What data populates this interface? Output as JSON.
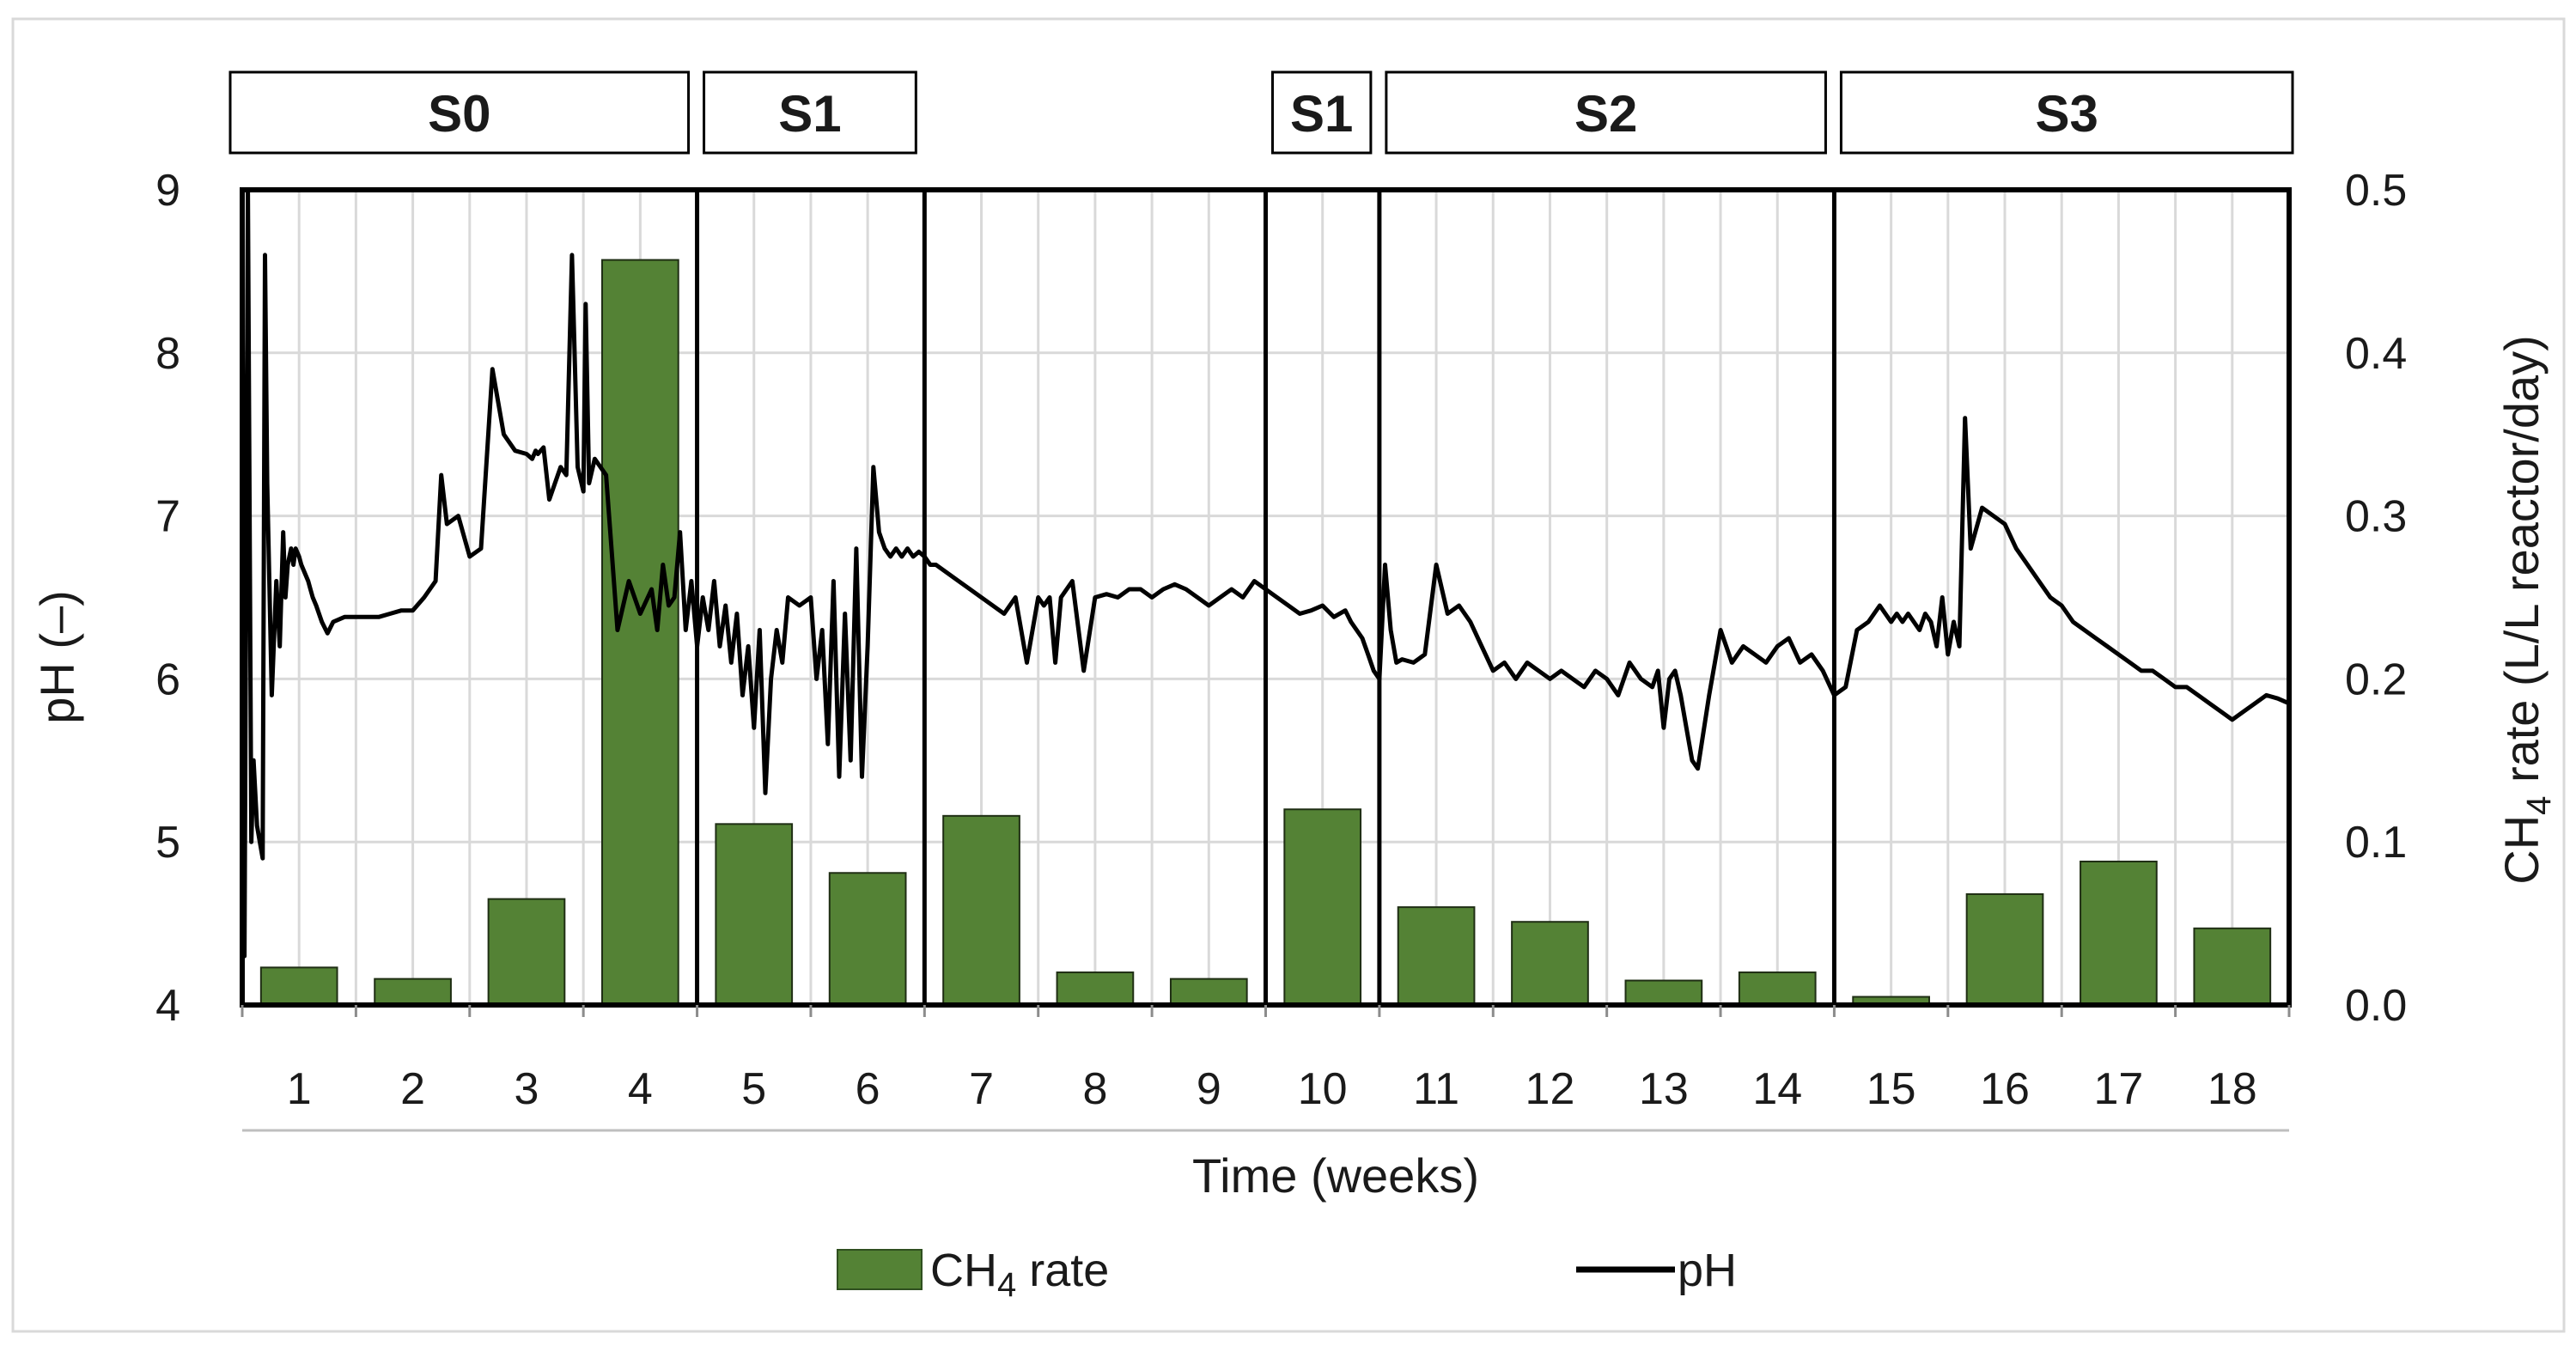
{
  "chart_data": {
    "type": "bar+line",
    "xlabel": "Time (weeks)",
    "ylabel_left": "pH (–)",
    "ylabel_right": "CH₄ rate (L/L reactor/day)",
    "ylabel_right_parts": {
      "prefix": "CH",
      "subscript": "4",
      "suffix": " rate (L/L reactor/day)"
    },
    "ylim_left": [
      4,
      9
    ],
    "ylim_right": [
      0,
      0.5
    ],
    "yticks_left": [
      "4",
      "5",
      "6",
      "7",
      "8",
      "9"
    ],
    "yticks_right": [
      "0.0",
      "0.1",
      "0.2",
      "0.3",
      "0.4",
      "0.5"
    ],
    "categories": [
      "1",
      "2",
      "3",
      "4",
      "5",
      "6",
      "7",
      "8",
      "9",
      "10",
      "11",
      "12",
      "13",
      "14",
      "15",
      "16",
      "17",
      "18"
    ],
    "grid": true,
    "stages": [
      {
        "label": "S0",
        "start": 0,
        "end": 4
      },
      {
        "label": "S1",
        "start": 4,
        "end": 6
      },
      {
        "label": "S1",
        "start": 9,
        "end": 10
      },
      {
        "label": "S2",
        "start": 10,
        "end": 14
      },
      {
        "label": "S3",
        "start": 14,
        "end": 18
      }
    ],
    "stage_dividers": [
      4,
      6,
      9,
      10,
      14
    ],
    "series": [
      {
        "name": "CH₄ rate",
        "type": "bar",
        "axis": "right",
        "color": "#548235",
        "values": [
          0.023,
          0.016,
          0.065,
          0.457,
          0.111,
          0.081,
          0.116,
          0.02,
          0.016,
          0.12,
          0.06,
          0.051,
          0.015,
          0.02,
          0.005,
          0.068,
          0.088,
          0.047
        ]
      },
      {
        "name": "pH",
        "type": "line",
        "axis": "left",
        "color": "#000000",
        "x": [
          0.0,
          0.02,
          0.05,
          0.08,
          0.1,
          0.13,
          0.18,
          0.2,
          0.22,
          0.26,
          0.3,
          0.33,
          0.36,
          0.38,
          0.4,
          0.43,
          0.45,
          0.47,
          0.5,
          0.52,
          0.55,
          0.58,
          0.6,
          0.62,
          0.65,
          0.7,
          0.75,
          0.8,
          0.9,
          1.0,
          1.1,
          1.2,
          1.3,
          1.4,
          1.5,
          1.6,
          1.7,
          1.75,
          1.8,
          1.9,
          2.0,
          2.1,
          2.2,
          2.3,
          2.4,
          2.5,
          2.55,
          2.58,
          2.6,
          2.65,
          2.7,
          2.75,
          2.8,
          2.85,
          2.9,
          2.95,
          3.0,
          3.02,
          3.05,
          3.1,
          3.2,
          3.3,
          3.4,
          3.5,
          3.6,
          3.65,
          3.7,
          3.75,
          3.8,
          3.85,
          3.9,
          3.95,
          4.0,
          4.05,
          4.1,
          4.15,
          4.2,
          4.25,
          4.3,
          4.35,
          4.4,
          4.45,
          4.5,
          4.55,
          4.6,
          4.65,
          4.7,
          4.75,
          4.8,
          4.9,
          5.0,
          5.05,
          5.1,
          5.15,
          5.2,
          5.25,
          5.3,
          5.35,
          5.4,
          5.45,
          5.5,
          5.55,
          5.6,
          5.65,
          5.7,
          5.75,
          5.8,
          5.85,
          5.9,
          5.95,
          6.0,
          6.05,
          6.1,
          6.2,
          6.3,
          6.4,
          6.5,
          6.6,
          6.7,
          6.8,
          6.9,
          7.0,
          7.05,
          7.1,
          7.15,
          7.2,
          7.3,
          7.4,
          7.5,
          7.6,
          7.7,
          7.8,
          7.9,
          8.0,
          8.1,
          8.2,
          8.3,
          8.4,
          8.5,
          8.6,
          8.7,
          8.8,
          8.9,
          9.0,
          9.1,
          9.2,
          9.3,
          9.4,
          9.5,
          9.6,
          9.7,
          9.75,
          9.8,
          9.85,
          9.9,
          9.95,
          10.0,
          10.05,
          10.1,
          10.15,
          10.2,
          10.3,
          10.4,
          10.5,
          10.6,
          10.7,
          10.8,
          10.9,
          11.0,
          11.1,
          11.2,
          11.3,
          11.4,
          11.5,
          11.6,
          11.7,
          11.8,
          11.9,
          12.0,
          12.1,
          12.2,
          12.3,
          12.4,
          12.45,
          12.5,
          12.55,
          12.6,
          12.65,
          12.7,
          12.75,
          12.8,
          12.9,
          13.0,
          13.1,
          13.2,
          13.3,
          13.4,
          13.5,
          13.6,
          13.7,
          13.8,
          13.9,
          14.0,
          14.1,
          14.2,
          14.3,
          14.4,
          14.45,
          14.5,
          14.55,
          14.6,
          14.65,
          14.7,
          14.75,
          14.8,
          14.85,
          14.9,
          14.95,
          15.0,
          15.05,
          15.1,
          15.15,
          15.2,
          15.3,
          15.4,
          15.5,
          15.6,
          15.7,
          15.8,
          15.9,
          16.0,
          16.1,
          16.2,
          16.3,
          16.4,
          16.5,
          16.6,
          16.7,
          16.8,
          16.9,
          17.0,
          17.1,
          17.2,
          17.3,
          17.4,
          17.5,
          17.6,
          17.7,
          17.8,
          17.9,
          18.0
        ],
        "y": [
          9.0,
          4.3,
          9.0,
          5.0,
          5.5,
          5.1,
          4.9,
          8.6,
          7.2,
          5.9,
          6.6,
          6.2,
          6.9,
          6.5,
          6.7,
          6.8,
          6.7,
          6.8,
          6.75,
          6.7,
          6.65,
          6.6,
          6.55,
          6.5,
          6.45,
          6.35,
          6.28,
          6.35,
          6.38,
          6.38,
          6.38,
          6.38,
          6.4,
          6.42,
          6.42,
          6.5,
          6.6,
          7.25,
          6.95,
          7.0,
          6.75,
          6.8,
          7.9,
          7.5,
          7.4,
          7.38,
          7.35,
          7.4,
          7.38,
          7.42,
          7.1,
          7.2,
          7.3,
          7.25,
          8.6,
          7.3,
          7.15,
          8.3,
          7.2,
          7.35,
          7.25,
          6.3,
          6.6,
          6.4,
          6.55,
          6.3,
          6.7,
          6.45,
          6.5,
          6.9,
          6.3,
          6.6,
          6.2,
          6.5,
          6.3,
          6.6,
          6.2,
          6.45,
          6.1,
          6.4,
          5.9,
          6.2,
          5.7,
          6.3,
          5.3,
          6.0,
          6.3,
          6.1,
          6.5,
          6.45,
          6.5,
          6.0,
          6.3,
          5.6,
          6.6,
          5.4,
          6.4,
          5.5,
          6.8,
          5.4,
          6.2,
          7.3,
          6.9,
          6.8,
          6.75,
          6.8,
          6.75,
          6.8,
          6.75,
          6.78,
          6.75,
          6.7,
          6.7,
          6.65,
          6.6,
          6.55,
          6.5,
          6.45,
          6.4,
          6.5,
          6.1,
          6.5,
          6.45,
          6.5,
          6.1,
          6.5,
          6.6,
          6.05,
          6.5,
          6.52,
          6.5,
          6.55,
          6.55,
          6.5,
          6.55,
          6.58,
          6.55,
          6.5,
          6.45,
          6.5,
          6.55,
          6.5,
          6.6,
          6.55,
          6.5,
          6.45,
          6.4,
          6.42,
          6.45,
          6.38,
          6.42,
          6.35,
          6.3,
          6.25,
          6.15,
          6.05,
          6.0,
          6.7,
          6.3,
          6.1,
          6.12,
          6.1,
          6.15,
          6.7,
          6.4,
          6.45,
          6.35,
          6.2,
          6.05,
          6.1,
          6.0,
          6.1,
          6.05,
          6.0,
          6.05,
          6.0,
          5.95,
          6.05,
          6.0,
          5.9,
          6.1,
          6.0,
          5.95,
          6.05,
          5.7,
          6.0,
          6.05,
          5.9,
          5.7,
          5.5,
          5.45,
          5.9,
          6.3,
          6.1,
          6.2,
          6.15,
          6.1,
          6.2,
          6.25,
          6.1,
          6.15,
          6.05,
          5.9,
          5.95,
          6.3,
          6.35,
          6.45,
          6.4,
          6.35,
          6.4,
          6.35,
          6.4,
          6.35,
          6.3,
          6.4,
          6.35,
          6.2,
          6.5,
          6.15,
          6.35,
          6.2,
          7.6,
          6.8,
          7.05,
          7.0,
          6.95,
          6.8,
          6.7,
          6.6,
          6.5,
          6.45,
          6.35,
          6.3,
          6.25,
          6.2,
          6.15,
          6.1,
          6.05,
          6.05,
          6.0,
          5.95,
          5.95,
          5.9,
          5.85,
          5.8,
          5.75,
          5.8,
          5.85,
          5.9,
          5.88,
          5.85
        ]
      }
    ],
    "legend": {
      "position": "bottom",
      "entries": [
        {
          "label_prefix": "CH",
          "label_sub": "4",
          "label_suffix": " rate",
          "kind": "bar",
          "color": "#548235"
        },
        {
          "label_prefix": "pH",
          "label_sub": "",
          "label_suffix": "",
          "kind": "line",
          "color": "#000000"
        }
      ]
    }
  }
}
